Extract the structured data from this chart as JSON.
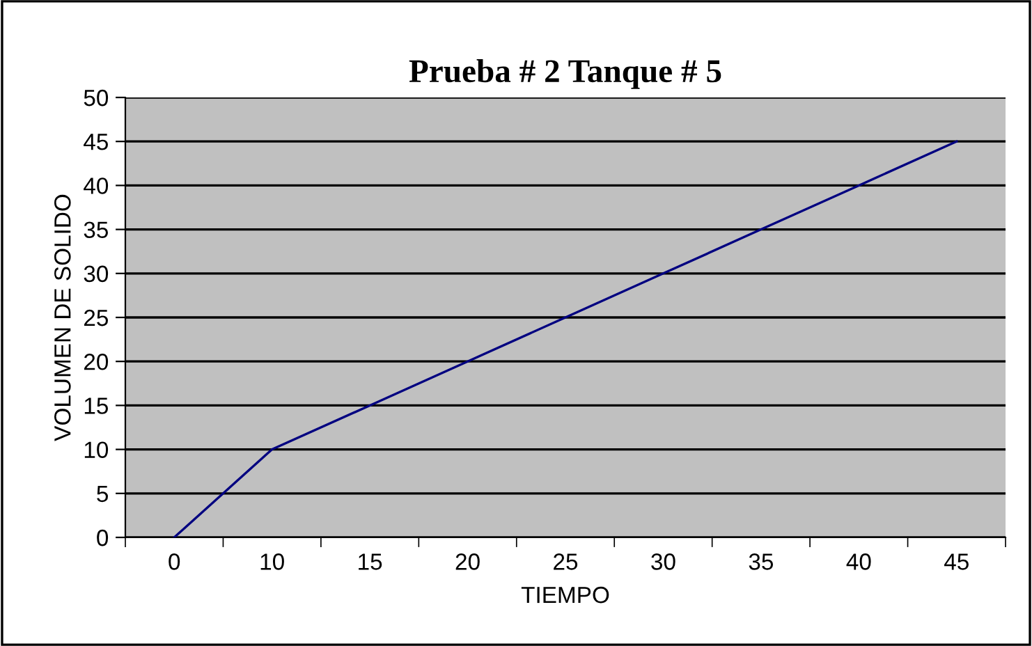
{
  "chart_data": {
    "type": "line",
    "title": "Prueba # 2 Tanque # 5",
    "xlabel": "TIEMPO",
    "ylabel": "VOLUMEN DE SOLIDO",
    "categories": [
      "0",
      "10",
      "15",
      "20",
      "25",
      "30",
      "35",
      "40",
      "45"
    ],
    "series": [
      {
        "color": "#000080",
        "values": [
          0,
          10,
          15,
          20,
          25,
          30,
          35,
          40,
          45
        ]
      }
    ],
    "ylim": [
      0,
      50
    ],
    "yticks": [
      0,
      5,
      10,
      15,
      20,
      25,
      30,
      35,
      40,
      45,
      50
    ],
    "grid": "y",
    "legend": false,
    "marker": "none",
    "line_style": "solid"
  }
}
